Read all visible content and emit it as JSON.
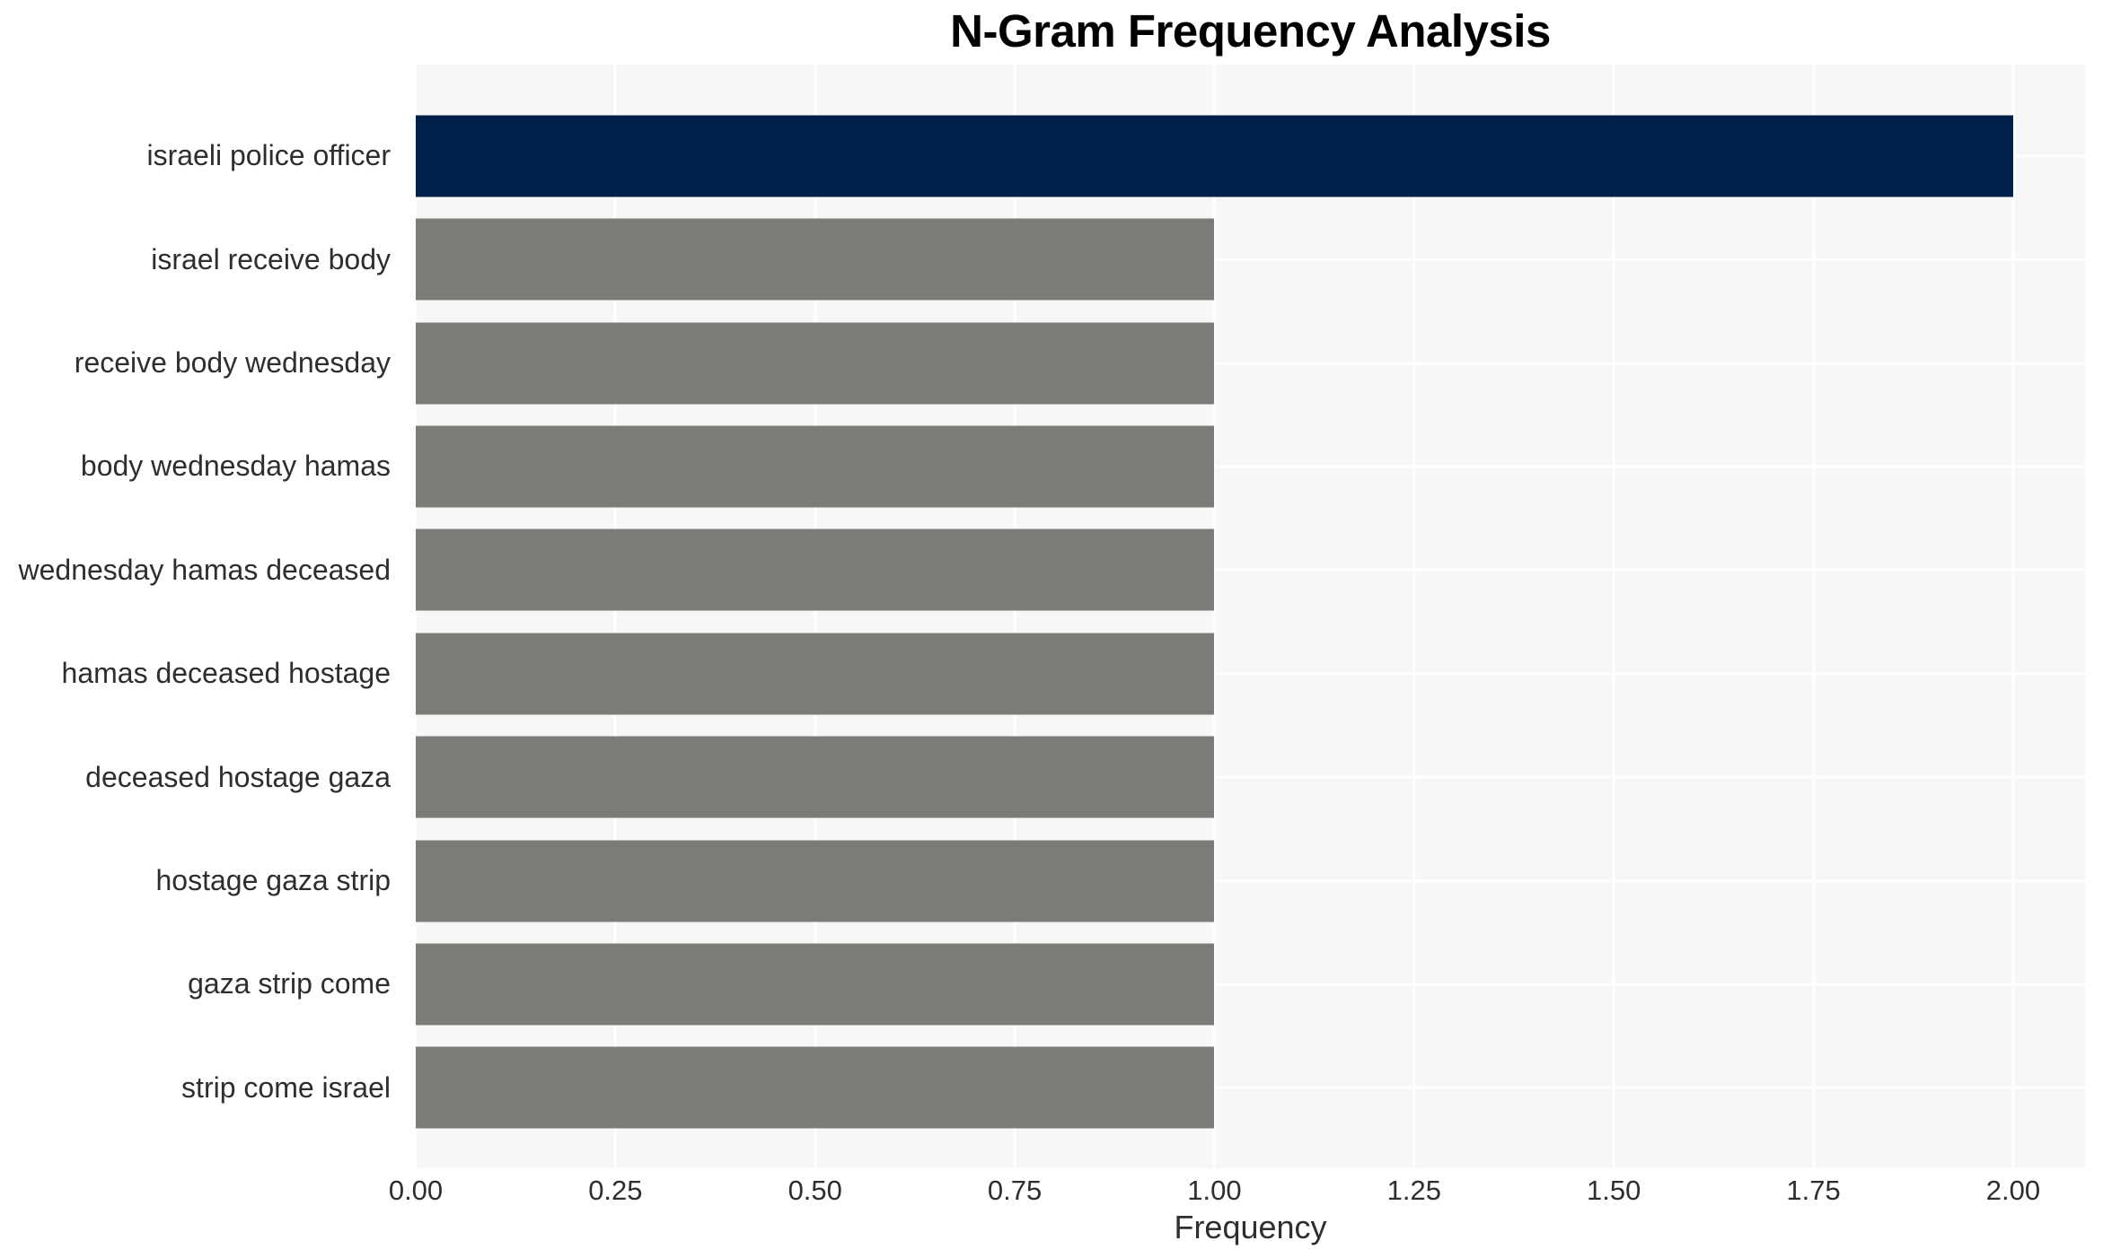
{
  "chart_data": {
    "type": "bar",
    "orientation": "horizontal",
    "title": "N-Gram Frequency Analysis",
    "xlabel": "Frequency",
    "ylabel": "",
    "categories": [
      "israeli police officer",
      "israel receive body",
      "receive body wednesday",
      "body wednesday hamas",
      "wednesday hamas deceased",
      "hamas deceased hostage",
      "deceased hostage gaza",
      "hostage gaza strip",
      "gaza strip come",
      "strip come israel"
    ],
    "values": [
      2,
      1,
      1,
      1,
      1,
      1,
      1,
      1,
      1,
      1
    ],
    "bar_colors": [
      "#01214d",
      "#7b7b78",
      "#7b7b78",
      "#7b7b78",
      "#7b7b78",
      "#7b7b78",
      "#7b7b78",
      "#7b7b78",
      "#7b7b78",
      "#7b7b78"
    ],
    "xticks": [
      {
        "value": 0.0,
        "label": "0.00"
      },
      {
        "value": 0.25,
        "label": "0.25"
      },
      {
        "value": 0.5,
        "label": "0.50"
      },
      {
        "value": 0.75,
        "label": "0.75"
      },
      {
        "value": 1.0,
        "label": "1.00"
      },
      {
        "value": 1.25,
        "label": "1.25"
      },
      {
        "value": 1.5,
        "label": "1.50"
      },
      {
        "value": 1.75,
        "label": "1.75"
      },
      {
        "value": 2.0,
        "label": "2.00"
      }
    ],
    "xlim": [
      0,
      2.09
    ],
    "grid": true,
    "legend": false,
    "colors": {
      "highlight_bar": "#01214d",
      "default_bar": "#7b7b78",
      "plot_background": "#f7f7f7",
      "gridline": "#ffffff",
      "tick_text": "#2e2e2e",
      "title_text": "#000000"
    }
  }
}
